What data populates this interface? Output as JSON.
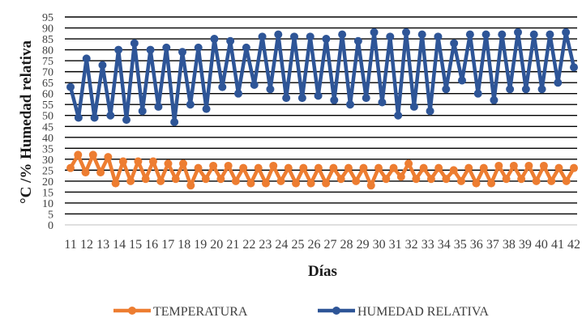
{
  "chart_data": {
    "type": "line",
    "title": "",
    "xlabel": "Días",
    "ylabel": "°C /% Humedad relativa",
    "ylim": [
      0,
      95
    ],
    "ytick_step": 5,
    "grid": "horizontal",
    "legend_position": "bottom",
    "x_tick_labels": [
      "11",
      "12",
      "13",
      "14",
      "15",
      "16",
      "17",
      "18",
      "19",
      "20",
      "21",
      "22",
      "23",
      "24",
      "25",
      "26",
      "27",
      "28",
      "29",
      "30",
      "31",
      "32",
      "33",
      "34",
      "35",
      "36",
      "37",
      "38",
      "39",
      "40",
      "41",
      "42"
    ],
    "x_tick_label_gap": "28→29",
    "series": [
      {
        "name": "TEMPERATURA",
        "color": "#ED7D31",
        "values": [
          26,
          32,
          24,
          32,
          24,
          31,
          19,
          29,
          20,
          29,
          21,
          29,
          20,
          28,
          21,
          28,
          18,
          26,
          21,
          27,
          21,
          27,
          20,
          26,
          19,
          26,
          19,
          27,
          20,
          26,
          19,
          26,
          19,
          26,
          19,
          26,
          21,
          26,
          20,
          26,
          18,
          26,
          21,
          26,
          22,
          28,
          21,
          26,
          21,
          26,
          21,
          25,
          20,
          26,
          19,
          26,
          19,
          27,
          21,
          27,
          21,
          27,
          20,
          27,
          20,
          26,
          20,
          26
        ]
      },
      {
        "name": "HUMEDAD RELATIVA",
        "color": "#2E5597",
        "values": [
          63,
          49,
          76,
          49,
          73,
          50,
          80,
          48,
          83,
          52,
          80,
          54,
          81,
          47,
          79,
          55,
          81,
          53,
          85,
          63,
          84,
          60,
          81,
          64,
          86,
          62,
          87,
          58,
          86,
          58,
          86,
          59,
          85,
          57,
          87,
          55,
          84,
          58,
          88,
          56,
          86,
          50,
          88,
          54,
          87,
          52,
          86,
          62,
          83,
          66,
          87,
          60,
          87,
          57,
          87,
          62,
          88,
          62,
          87,
          62,
          87,
          65,
          88,
          72
        ]
      }
    ]
  }
}
